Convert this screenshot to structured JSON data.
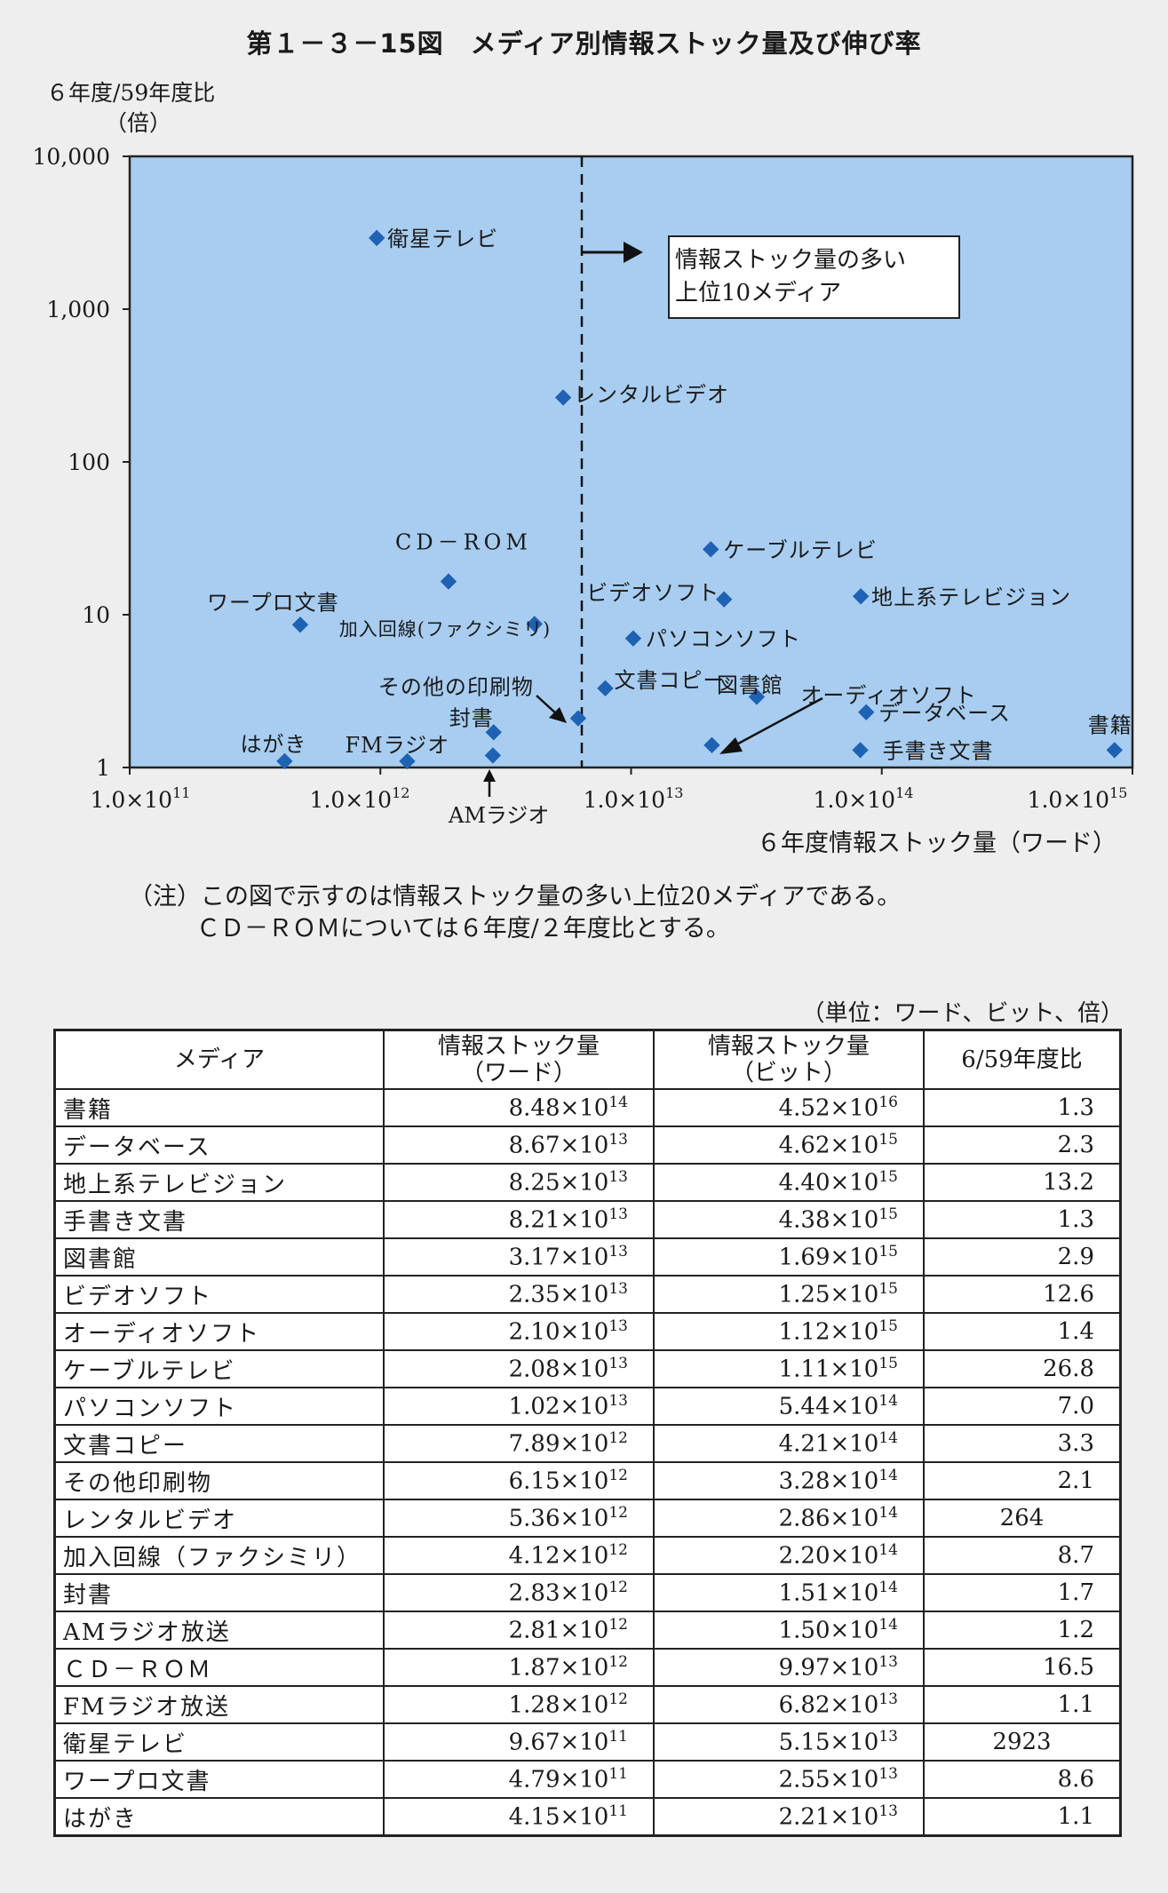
{
  "title": "第１－３－15図　メディア別情報ストック量及び伸び率",
  "chart_data": {
    "type": "scatter",
    "ylabel_line1": "６年度/59年度比",
    "ylabel_line2": "（倍）",
    "xlabel": "６年度情報ストック量（ワード）",
    "y_scale": "log",
    "x_scale": "log",
    "yticks": [
      "1",
      "10",
      "100",
      "1,000",
      "10,000"
    ],
    "xticks_base": [
      "1.0×10",
      "1.0×10",
      "1.0×10",
      "1.0×10",
      "1.0×10"
    ],
    "xticks_exp": [
      "11",
      "12",
      "13",
      "14",
      "15"
    ],
    "xlim": [
      100000000000.0,
      1000000000000000.0
    ],
    "ylim": [
      1,
      10000
    ],
    "annotation_box": [
      "情報ストック量の多い",
      "上位10メディア"
    ],
    "am_label": "AMラジオ",
    "points": [
      {
        "label": "書籍",
        "x": 848000000000000.0,
        "y": 1.3
      },
      {
        "label": "データベース",
        "x": 86700000000000.0,
        "y": 2.3
      },
      {
        "label": "地上系テレビジョン",
        "x": 82500000000000.0,
        "y": 13.2
      },
      {
        "label": "手書き文書",
        "x": 82100000000000.0,
        "y": 1.3
      },
      {
        "label": "図書館",
        "x": 31700000000000.0,
        "y": 2.9
      },
      {
        "label": "ビデオソフト",
        "x": 23500000000000.0,
        "y": 12.6
      },
      {
        "label": "オーディオソフト",
        "x": 21000000000000.0,
        "y": 1.4
      },
      {
        "label": "ケーブルテレビ",
        "x": 20800000000000.0,
        "y": 26.8
      },
      {
        "label": "パソコンソフト",
        "x": 10200000000000.0,
        "y": 7.0
      },
      {
        "label": "文書コピー",
        "x": 7890000000000.0,
        "y": 3.3
      },
      {
        "label": "その他の印刷物",
        "x": 6150000000000.0,
        "y": 2.1
      },
      {
        "label": "レンタルビデオ",
        "x": 5360000000000.0,
        "y": 264
      },
      {
        "label": "加入回線(ファクシミリ)",
        "x": 4120000000000.0,
        "y": 8.7
      },
      {
        "label": "封書",
        "x": 2830000000000.0,
        "y": 1.7
      },
      {
        "label": "",
        "x": 2810000000000.0,
        "y": 1.2
      },
      {
        "label": "CD－ROM",
        "x": 1870000000000.0,
        "y": 16.5
      },
      {
        "label": "FMラジオ",
        "x": 1280000000000.0,
        "y": 1.1
      },
      {
        "label": "衛星テレビ",
        "x": 967000000000.0,
        "y": 2923
      },
      {
        "label": "ワープロ文書",
        "x": 479000000000.0,
        "y": 8.6
      },
      {
        "label": "はがき",
        "x": 415000000000.0,
        "y": 1.1
      }
    ],
    "colors": {
      "plot_bg": "#a8cdf0",
      "marker": "#1f62b4"
    }
  },
  "note": {
    "line1": "（注）この図で示すのは情報ストック量の多い上位20メディアである。",
    "line2": "ＣＤ－ＲＯＭについては６年度/２年度比とする。"
  },
  "table": {
    "unit": "（単位：ワード、ビット、倍）",
    "headers": {
      "media": "メディア",
      "words_l1": "情報ストック量",
      "words_l2": "（ワード）",
      "bits_l1": "情報ストック量",
      "bits_l2": "（ビット）",
      "ratio": "6/59年度比"
    },
    "rows": [
      {
        "name": "書籍",
        "w": "8.48×10",
        "we": "14",
        "b": "4.52×10",
        "be": "16",
        "r": "1.3"
      },
      {
        "name": "データベース",
        "w": "8.67×10",
        "we": "13",
        "b": "4.62×10",
        "be": "15",
        "r": "2.3"
      },
      {
        "name": "地上系テレビジョン",
        "w": "8.25×10",
        "we": "13",
        "b": "4.40×10",
        "be": "15",
        "r": "13.2"
      },
      {
        "name": "手書き文書",
        "w": "8.21×10",
        "we": "13",
        "b": "4.38×10",
        "be": "15",
        "r": "1.3"
      },
      {
        "name": "図書館",
        "w": "3.17×10",
        "we": "13",
        "b": "1.69×10",
        "be": "15",
        "r": "2.9"
      },
      {
        "name": "ビデオソフト",
        "w": "2.35×10",
        "we": "13",
        "b": "1.25×10",
        "be": "15",
        "r": "12.6"
      },
      {
        "name": "オーディオソフト",
        "w": "2.10×10",
        "we": "13",
        "b": "1.12×10",
        "be": "15",
        "r": "1.4"
      },
      {
        "name": "ケーブルテレビ",
        "w": "2.08×10",
        "we": "13",
        "b": "1.11×10",
        "be": "15",
        "r": "26.8"
      },
      {
        "name": "パソコンソフト",
        "w": "1.02×10",
        "we": "13",
        "b": "5.44×10",
        "be": "14",
        "r": "7.0"
      },
      {
        "name": "文書コピー",
        "w": "7.89×10",
        "we": "12",
        "b": "4.21×10",
        "be": "14",
        "r": "3.3"
      },
      {
        "name": "その他印刷物",
        "w": "6.15×10",
        "we": "12",
        "b": "3.28×10",
        "be": "14",
        "r": "2.1"
      },
      {
        "name": "レンタルビデオ",
        "w": "5.36×10",
        "we": "12",
        "b": "2.86×10",
        "be": "14",
        "r": "264"
      },
      {
        "name": "加入回線（ファクシミリ）",
        "w": "4.12×10",
        "we": "12",
        "b": "2.20×10",
        "be": "14",
        "r": "8.7"
      },
      {
        "name": "封書",
        "w": "2.83×10",
        "we": "12",
        "b": "1.51×10",
        "be": "14",
        "r": "1.7"
      },
      {
        "name": "AMラジオ放送",
        "w": "2.81×10",
        "we": "12",
        "b": "1.50×10",
        "be": "14",
        "r": "1.2"
      },
      {
        "name": "ＣＤ－ＲＯＭ",
        "w": "1.87×10",
        "we": "12",
        "b": "9.97×10",
        "be": "13",
        "r": "16.5"
      },
      {
        "name": "FMラジオ放送",
        "w": "1.28×10",
        "we": "12",
        "b": "6.82×10",
        "be": "13",
        "r": "1.1"
      },
      {
        "name": "衛星テレビ",
        "w": "9.67×10",
        "we": "11",
        "b": "5.15×10",
        "be": "13",
        "r": "2923"
      },
      {
        "name": "ワープロ文書",
        "w": "4.79×10",
        "we": "11",
        "b": "2.55×10",
        "be": "13",
        "r": "8.6"
      },
      {
        "name": "はがき",
        "w": "4.15×10",
        "we": "11",
        "b": "2.21×10",
        "be": "13",
        "r": "1.1"
      }
    ]
  }
}
